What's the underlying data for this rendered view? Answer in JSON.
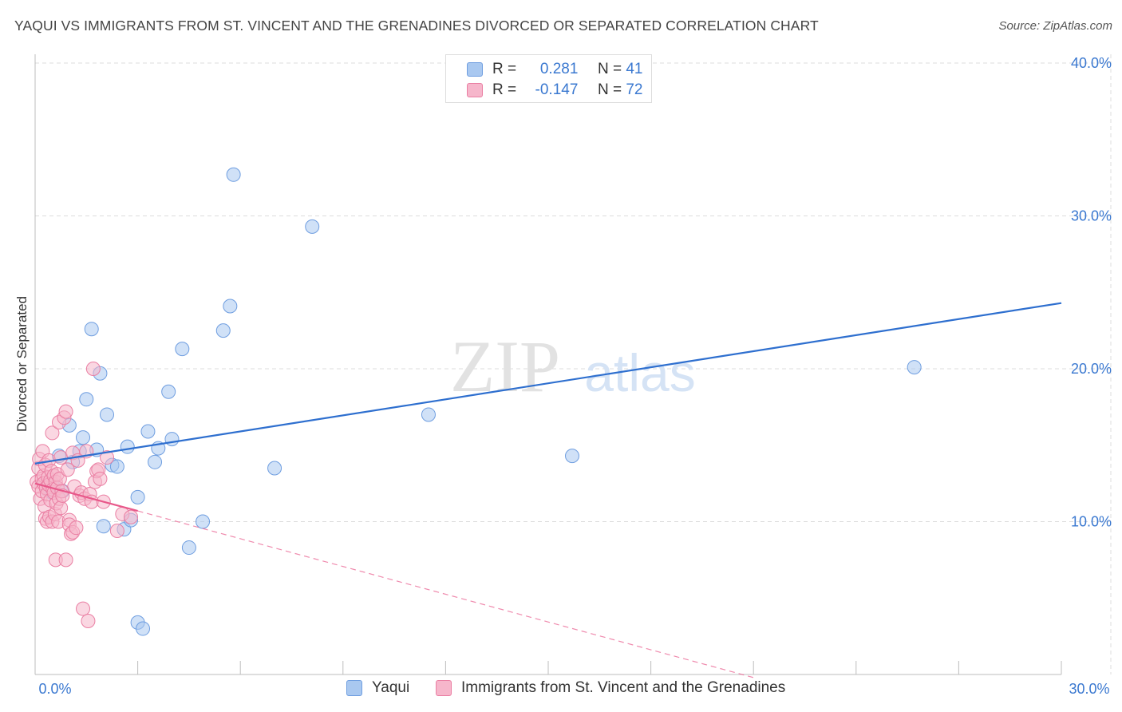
{
  "header": {
    "title": "YAQUI VS IMMIGRANTS FROM ST. VINCENT AND THE GRENADINES DIVORCED OR SEPARATED CORRELATION CHART",
    "source": "Source: ZipAtlas.com"
  },
  "watermark": {
    "zip": "ZIP",
    "atlas": "atlas"
  },
  "stats": {
    "rows": [
      {
        "r_label": "R =",
        "r_value": "0.281",
        "n_label": "N =",
        "n_value": "41"
      },
      {
        "r_label": "R =",
        "r_value": "-0.147",
        "n_label": "N =",
        "n_value": "72"
      }
    ]
  },
  "legend": {
    "items": [
      {
        "label": "Yaqui"
      },
      {
        "label": "Immigrants from St. Vincent and the Grenadines"
      }
    ]
  },
  "colors": {
    "blue_fill": "#a9c8f0",
    "blue_stroke": "#6f9ee0",
    "blue_line": "#2e6fcf",
    "pink_fill": "#f6b6cb",
    "pink_stroke": "#ea7fa3",
    "pink_line": "#e8588a",
    "grid": "#dcdcdc",
    "axis_label": "#3a78d0"
  },
  "chart_data": {
    "type": "scatter",
    "title": "YAQUI VS IMMIGRANTS FROM ST. VINCENT AND THE GRENADINES DIVORCED OR SEPARATED CORRELATION CHART",
    "xlabel": "",
    "ylabel": "Divorced or Separated",
    "xlim": [
      0,
      30
    ],
    "ylim": [
      0,
      40
    ],
    "x_ticks": [
      0,
      30
    ],
    "x_tick_labels": [
      "0.0%",
      "30.0%"
    ],
    "y_ticks": [
      10,
      20,
      30,
      40
    ],
    "y_tick_labels": [
      "10.0%",
      "20.0%",
      "30.0%",
      "40.0%"
    ],
    "grid": true,
    "legend_position": "bottom",
    "series": [
      {
        "name": "Yaqui",
        "color": "blue",
        "r": 0.281,
        "n": 41,
        "trend": {
          "x": [
            0,
            30
          ],
          "y": [
            13.8,
            24.3
          ],
          "style": "solid"
        },
        "points": [
          [
            0.3,
            12.5
          ],
          [
            0.35,
            12.1
          ],
          [
            0.4,
            12.4
          ],
          [
            0.5,
            12.5
          ],
          [
            0.5,
            11.9
          ],
          [
            0.7,
            14.3
          ],
          [
            0.8,
            12.0
          ],
          [
            1.0,
            16.3
          ],
          [
            1.1,
            13.9
          ],
          [
            1.3,
            14.6
          ],
          [
            1.4,
            15.5
          ],
          [
            1.5,
            18.0
          ],
          [
            1.65,
            22.6
          ],
          [
            1.8,
            14.7
          ],
          [
            1.9,
            19.7
          ],
          [
            2.0,
            9.7
          ],
          [
            2.1,
            17.0
          ],
          [
            2.25,
            13.7
          ],
          [
            2.4,
            13.6
          ],
          [
            2.6,
            9.5
          ],
          [
            2.7,
            14.9
          ],
          [
            2.8,
            10.1
          ],
          [
            3.0,
            11.6
          ],
          [
            3.0,
            3.4
          ],
          [
            3.15,
            3.0
          ],
          [
            3.3,
            15.9
          ],
          [
            3.5,
            13.9
          ],
          [
            3.6,
            14.8
          ],
          [
            3.9,
            18.5
          ],
          [
            4.0,
            15.4
          ],
          [
            4.3,
            21.3
          ],
          [
            4.5,
            8.3
          ],
          [
            4.9,
            10.0
          ],
          [
            5.5,
            22.5
          ],
          [
            5.7,
            24.1
          ],
          [
            5.8,
            32.7
          ],
          [
            7.0,
            13.5
          ],
          [
            8.1,
            29.3
          ],
          [
            11.5,
            17.0
          ],
          [
            15.7,
            14.3
          ],
          [
            25.7,
            20.1
          ]
        ]
      },
      {
        "name": "Immigrants from St. Vincent and the Grenadines",
        "color": "pink",
        "r": -0.147,
        "n": 72,
        "trend": {
          "x": [
            0,
            3.0
          ],
          "y": [
            12.5,
            10.7
          ],
          "style": "solid"
        },
        "trend_extension": {
          "x": [
            3.0,
            21.0
          ],
          "y": [
            10.7,
            -0.2
          ],
          "style": "dashed"
        },
        "points": [
          [
            0.05,
            12.6
          ],
          [
            0.1,
            13.5
          ],
          [
            0.1,
            12.3
          ],
          [
            0.12,
            14.1
          ],
          [
            0.15,
            11.5
          ],
          [
            0.2,
            12.8
          ],
          [
            0.2,
            12.0
          ],
          [
            0.22,
            14.6
          ],
          [
            0.25,
            13.0
          ],
          [
            0.25,
            12.5
          ],
          [
            0.28,
            11.0
          ],
          [
            0.3,
            10.2
          ],
          [
            0.3,
            13.7
          ],
          [
            0.32,
            12.2
          ],
          [
            0.35,
            11.8
          ],
          [
            0.35,
            10.0
          ],
          [
            0.38,
            12.9
          ],
          [
            0.4,
            12.4
          ],
          [
            0.4,
            14.0
          ],
          [
            0.42,
            10.3
          ],
          [
            0.45,
            11.4
          ],
          [
            0.45,
            12.7
          ],
          [
            0.48,
            13.3
          ],
          [
            0.5,
            10.0
          ],
          [
            0.5,
            15.8
          ],
          [
            0.52,
            12.1
          ],
          [
            0.55,
            11.9
          ],
          [
            0.55,
            13.0
          ],
          [
            0.58,
            10.5
          ],
          [
            0.6,
            12.6
          ],
          [
            0.6,
            7.5
          ],
          [
            0.62,
            11.2
          ],
          [
            0.65,
            12.2
          ],
          [
            0.65,
            13.1
          ],
          [
            0.68,
            10.0
          ],
          [
            0.7,
            16.5
          ],
          [
            0.7,
            11.5
          ],
          [
            0.72,
            12.8
          ],
          [
            0.75,
            10.9
          ],
          [
            0.75,
            14.2
          ],
          [
            0.78,
            12.0
          ],
          [
            0.8,
            11.7
          ],
          [
            0.85,
            16.8
          ],
          [
            0.9,
            17.2
          ],
          [
            0.9,
            7.5
          ],
          [
            0.95,
            13.4
          ],
          [
            1.0,
            10.1
          ],
          [
            1.0,
            9.8
          ],
          [
            1.05,
            9.2
          ],
          [
            1.1,
            9.3
          ],
          [
            1.1,
            14.5
          ],
          [
            1.15,
            12.3
          ],
          [
            1.2,
            9.6
          ],
          [
            1.25,
            14.0
          ],
          [
            1.3,
            11.7
          ],
          [
            1.35,
            11.9
          ],
          [
            1.4,
            4.3
          ],
          [
            1.45,
            11.5
          ],
          [
            1.5,
            14.6
          ],
          [
            1.55,
            3.5
          ],
          [
            1.6,
            11.8
          ],
          [
            1.65,
            11.3
          ],
          [
            1.7,
            20.0
          ],
          [
            1.75,
            12.6
          ],
          [
            1.8,
            13.3
          ],
          [
            1.85,
            13.4
          ],
          [
            1.9,
            12.8
          ],
          [
            2.0,
            11.3
          ],
          [
            2.1,
            14.2
          ],
          [
            2.4,
            9.4
          ],
          [
            2.55,
            10.5
          ],
          [
            2.8,
            10.3
          ]
        ]
      }
    ]
  }
}
